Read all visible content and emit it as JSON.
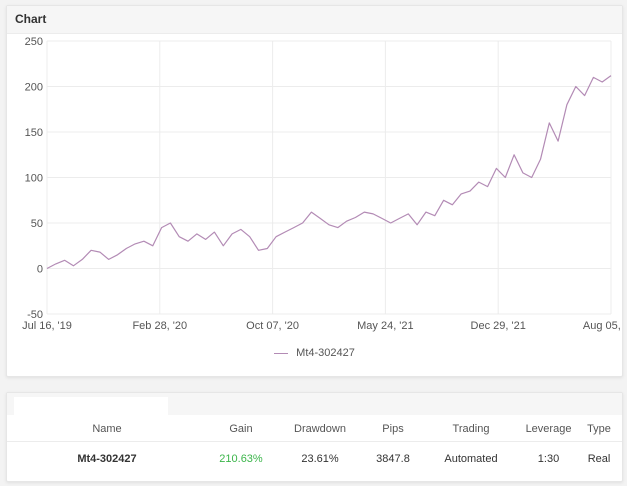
{
  "chart_card": {
    "title": "Chart"
  },
  "chart_data": {
    "type": "line",
    "ylim": [
      -50,
      250
    ],
    "y_ticks": [
      250,
      200,
      150,
      100,
      50,
      0,
      -50
    ],
    "x_ticks": [
      "Jul 16, '19",
      "Feb 28, '20",
      "Oct 07, '20",
      "May 24, '21",
      "Dec 29, '21",
      "Aug 05, '..."
    ],
    "grid": true,
    "legend_position": "bottom",
    "series": [
      {
        "name": "Mt4-302427",
        "color": "#b38bb5",
        "x": [
          "Jul 16, '19",
          "Jul 23, '19",
          "Aug 05, '19",
          "Aug 15, '19",
          "Aug 22, '19",
          "Sep 05, '19",
          "Sep 15, '19",
          "Oct 10, '19",
          "Nov 20, '19",
          "Dec 31, '19",
          "Feb 10, '20",
          "Feb 28, '20",
          "Mar 05, '20",
          "Mar 15, '20",
          "Apr 05, '20",
          "Apr 25, '20",
          "May 15, '20",
          "Jun 01, '20",
          "Jun 20, '20",
          "Jul 10, '20",
          "Aug 01, '20",
          "Aug 20, '20",
          "Sep 10, '20",
          "Sep 20, '20",
          "Oct 07, '20",
          "Oct 25, '20",
          "Nov 15, '20",
          "Dec 10, '20",
          "Jan 05, '21",
          "Jan 30, '21",
          "Feb 25, '21",
          "Mar 10, '21",
          "Apr 05, '21",
          "Apr 30, '21",
          "May 24, '21",
          "Jun 10, '21",
          "Jul 01, '21",
          "Jul 25, '21",
          "Aug 20, '21",
          "Sep 10, '21",
          "Oct 05, '21",
          "Oct 25, '21",
          "Nov 15, '21",
          "Dec 01, '21",
          "Dec 15, '21",
          "Dec 29, '21",
          "Jan 20, '22",
          "Feb 15, '22",
          "Mar 05, '22",
          "Mar 20, '22",
          "Apr 05, '22",
          "Apr 15, '22",
          "Apr 28, '22",
          "May 08, '22",
          "May 20, '22",
          "Jun 01, '22",
          "Jun 15, '22",
          "Jun 25, '22",
          "Jul 05, '22",
          "Jul 15, '22",
          "Jul 25, '22",
          "Aug 05, '22",
          "Aug 12, '22",
          "Aug 18, '22",
          "Aug 25, '22"
        ],
        "values": [
          0,
          5,
          9,
          3,
          10,
          20,
          18,
          10,
          15,
          22,
          27,
          30,
          25,
          45,
          50,
          35,
          30,
          38,
          32,
          40,
          25,
          38,
          43,
          35,
          20,
          22,
          35,
          40,
          45,
          50,
          62,
          55,
          48,
          45,
          52,
          56,
          62,
          60,
          55,
          50,
          55,
          60,
          48,
          62,
          58,
          75,
          70,
          82,
          85,
          95,
          90,
          110,
          100,
          125,
          105,
          100,
          120,
          160,
          140,
          180,
          200,
          190,
          210,
          205,
          212
        ]
      }
    ]
  },
  "table": {
    "headers": {
      "name": "Name",
      "gain": "Gain",
      "drawdown": "Drawdown",
      "pips": "Pips",
      "trading": "Trading",
      "leverage": "Leverage",
      "type": "Type"
    },
    "rows": [
      {
        "name": "Mt4-302427",
        "gain": "210.63%",
        "drawdown": "23.61%",
        "pips": "3847.8",
        "trading": "Automated",
        "leverage": "1:30",
        "type": "Real"
      }
    ],
    "colors": {
      "gain_positive": "#3bb54a"
    }
  }
}
